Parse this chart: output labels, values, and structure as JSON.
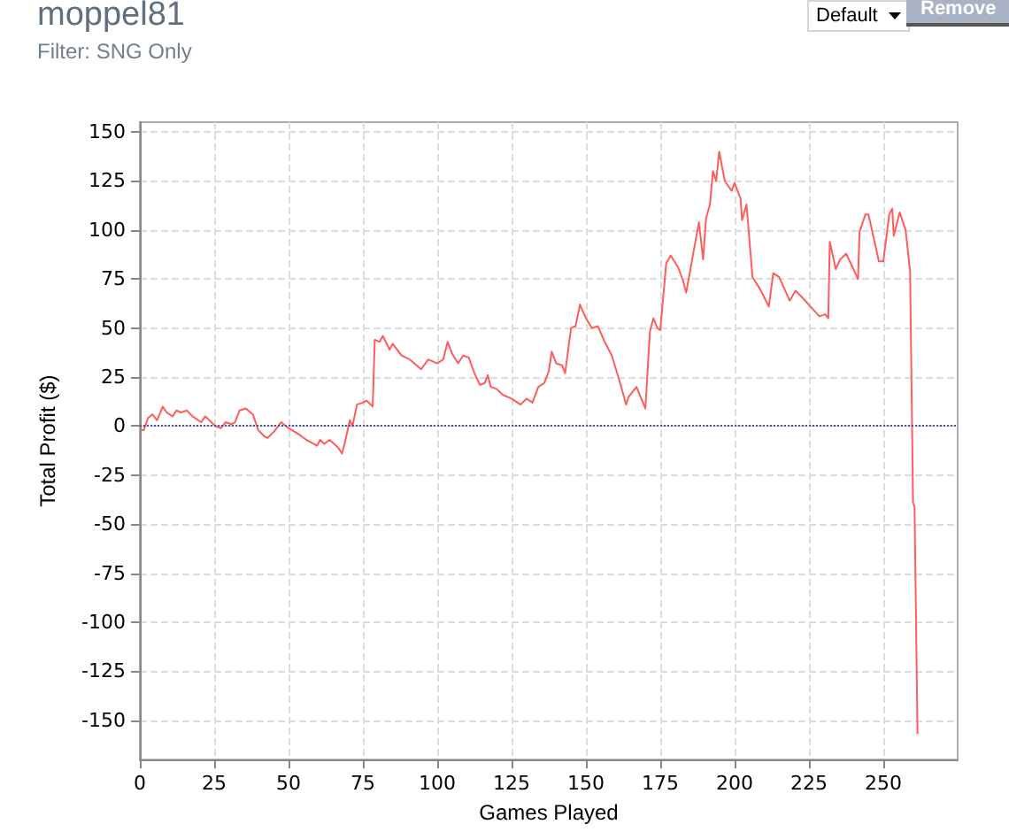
{
  "chart_data": {
    "type": "line",
    "title": "moppel81",
    "subtitle": "Filter: SNG Only",
    "xlabel": "Games Played",
    "ylabel": "Total Profit ($)",
    "annotations": [
      "Default",
      "Remove"
    ],
    "xlim": [
      0,
      275
    ],
    "xticks": [
      0,
      25,
      50,
      75,
      100,
      125,
      150,
      175,
      200,
      225,
      250
    ],
    "ylim": [
      -170,
      155
    ],
    "yticks": [
      -150,
      -125,
      -100,
      -75,
      -50,
      -25,
      0,
      25,
      50,
      75,
      100,
      125,
      150
    ],
    "grid": true,
    "marker": "none",
    "line_style": "solid",
    "ref_lines": [
      {
        "axis": "y",
        "value": 0,
        "color": "#5050a0",
        "line_style": "dotted"
      }
    ],
    "series": [
      {
        "color": "#ff5c5c",
        "x": [
          0,
          1.3,
          2.7,
          4.2,
          5.8,
          7.7,
          9,
          11,
          12.3,
          13.8,
          15.8,
          17.7,
          20.6,
          22,
          25.4,
          27.3,
          28.8,
          30.8,
          32,
          33.5,
          35.6,
          38,
          39.8,
          41.7,
          43,
          45,
          47.5,
          50,
          53.3,
          56,
          59.6,
          60.6,
          62,
          63.8,
          66.7,
          68,
          69,
          70.6,
          71.5,
          73,
          75,
          76.3,
          78.3,
          79,
          80.6,
          81.7,
          84,
          85,
          88,
          90.8,
          94.6,
          97,
          100,
          102,
          103.5,
          105,
          107,
          108.7,
          110.6,
          112.5,
          114.4,
          116,
          117,
          118,
          120,
          122,
          125,
          128,
          130,
          132,
          134,
          136,
          137.5,
          138.5,
          140,
          142,
          143,
          145,
          146.5,
          148,
          150,
          152,
          154,
          156,
          158.7,
          161.5,
          163.5,
          164.4,
          167,
          170,
          171.5,
          172.7,
          174,
          175,
          177,
          178.5,
          181,
          182.7,
          183.7,
          185.6,
          188,
          189.4,
          190.4,
          191.7,
          192.7,
          193.8,
          194.8,
          196.7,
          199,
          200,
          202,
          202.5,
          204,
          206,
          208.5,
          211.5,
          213,
          215,
          218.5,
          220.5,
          222.5,
          225.5,
          228.5,
          230.5,
          231.5,
          232,
          234,
          235.5,
          237.5,
          241.5,
          242,
          244,
          245,
          248.5,
          250,
          252,
          253,
          253.5,
          255.5,
          257.5,
          259,
          260,
          260.5,
          261.5
        ],
        "values": [
          -2,
          -2,
          4,
          6,
          3,
          10,
          7,
          5,
          8,
          7,
          8,
          5,
          2,
          5,
          0,
          -1,
          2,
          1,
          2,
          8,
          9,
          6,
          -2,
          -5,
          -6,
          -3,
          2,
          -1,
          -4,
          -7,
          -10,
          -7,
          -9,
          -7,
          -11,
          -14,
          -8,
          3,
          0,
          11,
          12,
          13,
          10,
          44,
          43,
          46,
          39,
          42,
          36,
          34,
          29,
          34,
          32,
          34,
          43,
          37,
          32,
          36,
          35,
          27,
          21,
          22,
          26,
          20,
          19,
          16,
          14,
          11,
          14,
          12,
          20,
          22,
          28,
          38,
          32,
          31,
          27,
          50,
          51,
          62,
          55,
          50,
          51,
          44,
          36,
          22,
          11,
          15,
          20,
          9,
          48,
          55,
          50,
          49,
          83,
          87,
          81,
          74,
          68,
          84,
          104,
          85,
          106,
          113,
          130,
          125,
          140,
          125,
          120,
          124,
          116,
          105,
          113,
          76,
          70,
          61,
          78,
          76,
          64,
          69,
          66,
          61,
          56,
          57,
          55,
          94,
          80,
          85,
          88,
          75,
          99,
          108,
          108,
          84,
          84,
          108,
          111,
          97,
          109,
          100,
          79,
          -39,
          -41,
          -157
        ]
      }
    ]
  }
}
